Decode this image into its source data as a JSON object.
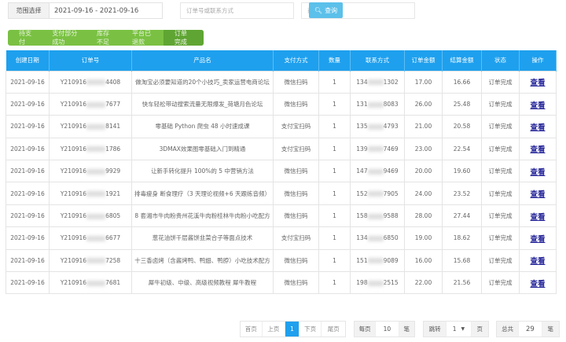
{
  "filters": {
    "range_label": "范围选择",
    "range_value": "2021-09-16 - 2021-09-16",
    "order_placeholder": "订单号或联系方式",
    "product_placeholder": "商品",
    "search_label": "查询"
  },
  "status_tabs": [
    {
      "label": "待支付"
    },
    {
      "label": "支付部分成功"
    },
    {
      "label": "库存不足"
    },
    {
      "label": "平台已退款"
    },
    {
      "label": "订单完成",
      "active": true
    }
  ],
  "table": {
    "headers": [
      "创建日期",
      "订单号",
      "产品名",
      "支付方式",
      "数量",
      "联系方式",
      "订单金额",
      "结算金额",
      "状态",
      "操作"
    ],
    "rows": [
      {
        "date": "2021-09-16",
        "order_pre": "Y210916",
        "order_suf": "4408",
        "product": "做淘宝必须要知道的20个小技巧_卖家运营电商论坛",
        "pay": "微信扫码",
        "qty": "1",
        "phone_pre": "134",
        "phone_suf": "1302",
        "amount": "17.00",
        "settle": "16.66",
        "status": "订单完成",
        "action": "查看"
      },
      {
        "date": "2021-09-16",
        "order_pre": "Y210916",
        "order_suf": "7677",
        "product": "快车轻松带动搜索流量无限爆发_荷塘月色论坛",
        "pay": "微信扫码",
        "qty": "1",
        "phone_pre": "131",
        "phone_suf": "8083",
        "amount": "26.00",
        "settle": "25.48",
        "status": "订单完成",
        "action": "查看"
      },
      {
        "date": "2021-09-16",
        "order_pre": "Y210916",
        "order_suf": "8141",
        "product": "零基础 Python 爬虫 48 小时速成课",
        "pay": "支付宝扫码",
        "qty": "1",
        "phone_pre": "135",
        "phone_suf": "4793",
        "amount": "21.00",
        "settle": "20.58",
        "status": "订单完成",
        "action": "查看"
      },
      {
        "date": "2021-09-16",
        "order_pre": "Y210916",
        "order_suf": "1786",
        "product": "3DMAX效果图零基础入门到精通",
        "pay": "支付宝扫码",
        "qty": "1",
        "phone_pre": "139",
        "phone_suf": "7469",
        "amount": "23.00",
        "settle": "22.54",
        "status": "订单完成",
        "action": "查看"
      },
      {
        "date": "2021-09-16",
        "order_pre": "Y210916",
        "order_suf": "9929",
        "product": "让新手转化提升 100%的 5 中营销方法",
        "pay": "微信扫码",
        "qty": "1",
        "phone_pre": "147",
        "phone_suf": "9469",
        "amount": "20.00",
        "settle": "19.60",
        "status": "订单完成",
        "action": "查看"
      },
      {
        "date": "2021-09-16",
        "order_pre": "Y210916",
        "order_suf": "1921",
        "product": "排毒瘦身 断食理疗（3 天理论视频+6 天跟练音频）",
        "pay": "微信扫码",
        "qty": "1",
        "phone_pre": "152",
        "phone_suf": "7905",
        "amount": "24.00",
        "settle": "23.52",
        "status": "订单完成",
        "action": "查看"
      },
      {
        "date": "2021-09-16",
        "order_pre": "Y210916",
        "order_suf": "6805",
        "product": "8 套湘市牛肉粉贵州花溪牛肉粉桂林牛肉粉小吃配方",
        "pay": "微信扫码",
        "qty": "1",
        "phone_pre": "158",
        "phone_suf": "9588",
        "amount": "28.00",
        "settle": "27.44",
        "status": "订单完成",
        "action": "查看"
      },
      {
        "date": "2021-09-16",
        "order_pre": "Y210916",
        "order_suf": "6677",
        "product": "葱花油饼千层酱饼韭菜合子等面点技术",
        "pay": "支付宝扫码",
        "qty": "1",
        "phone_pre": "134",
        "phone_suf": "6850",
        "amount": "19.00",
        "settle": "18.62",
        "status": "订单完成",
        "action": "查看"
      },
      {
        "date": "2021-09-16",
        "order_pre": "Y210916",
        "order_suf": "7258",
        "product": "十三香卤烤（含酱烤鸭、鸭翅、鸭脖）小吃技术配方",
        "pay": "微信扫码",
        "qty": "1",
        "phone_pre": "151",
        "phone_suf": "9089",
        "amount": "16.00",
        "settle": "15.68",
        "status": "订单完成",
        "action": "查看"
      },
      {
        "date": "2021-09-16",
        "order_pre": "Y210916",
        "order_suf": "7681",
        "product": "犀牛初级、中级、高级视频教程 犀牛教程",
        "pay": "微信扫码",
        "qty": "1",
        "phone_pre": "198",
        "phone_suf": "2515",
        "amount": "22.00",
        "settle": "21.56",
        "status": "订单完成",
        "action": "查看"
      }
    ]
  },
  "pagination": {
    "first": "首页",
    "prev": "上页",
    "current": "1",
    "next": "下页",
    "last": "尾页",
    "per_page_label": "每页",
    "per_page": "10",
    "per_page_unit": "笔",
    "jump_label": "跳转",
    "jump_value": "1",
    "jump_unit": "页",
    "total_label": "总共",
    "total": "29",
    "total_unit": "笔"
  },
  "colors": {
    "header": "#1ea0ee",
    "tabs": "#7ac143",
    "search_button": "#5bc0ea"
  }
}
